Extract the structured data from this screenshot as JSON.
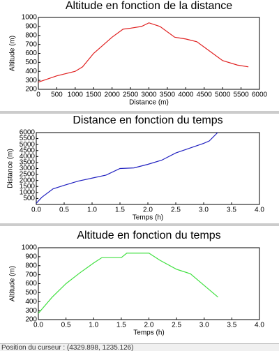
{
  "chart_data": [
    {
      "type": "line",
      "title": "Altitude en fonction de la distance",
      "x_label": "Distance (m)",
      "y_label": "Altitude (m)",
      "xlim": [
        0,
        6000
      ],
      "xticks": [
        0,
        500,
        1000,
        1500,
        2000,
        2500,
        3000,
        3500,
        4000,
        4500,
        5000,
        5500,
        6000
      ],
      "ylim": [
        200,
        1000
      ],
      "yticks": [
        200,
        300,
        400,
        500,
        600,
        700,
        800,
        900,
        1000
      ],
      "series": [
        {
          "color": "#e02020",
          "x": [
            0,
            500,
            1000,
            1200,
            1500,
            2000,
            2300,
            2500,
            2800,
            3000,
            3300,
            3700,
            4000,
            4300,
            4600,
            5000,
            5400,
            5700
          ],
          "values": [
            280,
            350,
            400,
            450,
            600,
            780,
            870,
            880,
            900,
            940,
            900,
            780,
            760,
            730,
            640,
            520,
            470,
            450
          ]
        }
      ]
    },
    {
      "type": "line",
      "title": "Distance en fonction du temps",
      "x_label": "Temps (h)",
      "y_label": "Distance (m)",
      "xlim": [
        0,
        4
      ],
      "xticks": [
        {
          "value": 0,
          "label": "0.0"
        },
        0.5,
        {
          "value": 1,
          "label": "1.0"
        },
        1.5,
        {
          "value": 2,
          "label": "2.0"
        },
        2.5,
        {
          "value": 3,
          "label": "3.0"
        },
        3.5,
        {
          "value": 4,
          "label": "4.0"
        }
      ],
      "ylim": [
        0,
        6000
      ],
      "yticks": [
        500,
        1000,
        1500,
        2000,
        2500,
        3000,
        3500,
        4000,
        4500,
        5000,
        5500,
        6000
      ],
      "series": [
        {
          "color": "#2020c0",
          "x": [
            0,
            0.1,
            0.3,
            0.5,
            0.75,
            1.0,
            1.25,
            1.5,
            1.75,
            2.0,
            2.25,
            2.5,
            2.75,
            3.0,
            3.1,
            3.25
          ],
          "values": [
            100,
            600,
            1300,
            1600,
            1950,
            2200,
            2450,
            3000,
            3050,
            3350,
            3700,
            4300,
            4700,
            5100,
            5300,
            6000
          ]
        }
      ]
    },
    {
      "type": "line",
      "title": "Altitude en fonction du temps",
      "x_label": "Temps (h)",
      "y_label": "Altitude (m)",
      "xlim": [
        0,
        4
      ],
      "xticks": [
        {
          "value": 0,
          "label": "0.0"
        },
        0.5,
        {
          "value": 1,
          "label": "1.0"
        },
        1.5,
        {
          "value": 2,
          "label": "2.0"
        },
        2.5,
        {
          "value": 3,
          "label": "3.0"
        },
        3.5,
        {
          "value": 4,
          "label": "4.0"
        }
      ],
      "ylim": [
        200,
        1000
      ],
      "yticks": [
        200,
        300,
        400,
        500,
        600,
        700,
        800,
        900,
        1000
      ],
      "series": [
        {
          "color": "#40e040",
          "x": [
            0,
            0.25,
            0.5,
            0.75,
            1.0,
            1.15,
            1.5,
            1.6,
            2.0,
            2.2,
            2.5,
            2.75,
            3.0,
            3.25
          ],
          "values": [
            270,
            450,
            600,
            720,
            830,
            890,
            890,
            940,
            940,
            860,
            760,
            710,
            580,
            450
          ]
        }
      ]
    }
  ],
  "status_bar": {
    "text": "Position du curseur : (4329.898, 1235.126)"
  }
}
